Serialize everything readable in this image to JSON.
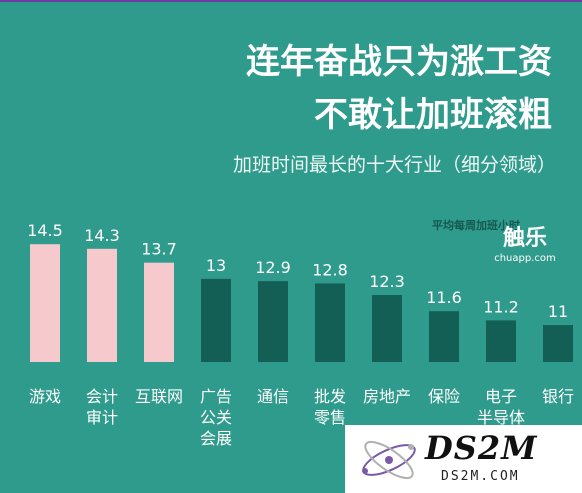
{
  "title_line1": "连年奋战只为涨工资",
  "title_line2": "不敢让加班滚粗",
  "subtitle": "加班时间最长的十大行业（细分领域）",
  "unit_note": "平均每周加班小时",
  "logo": {
    "name": "触乐",
    "url": "chuapp.com"
  },
  "watermark": {
    "name": "DS2M",
    "url": "DS2M.COM"
  },
  "colors": {
    "background": "#2f9b8c",
    "highlight": "#f6c9cc",
    "normal": "#135f55"
  },
  "chart_data": {
    "type": "bar",
    "title": "加班时间最长的十大行业（细分领域）",
    "ylabel": "平均每周加班小时",
    "categories": [
      "游戏",
      "会计\n审计",
      "互联网",
      "广告\n公关\n会展",
      "通信",
      "批发\n零售",
      "房地产",
      "保险",
      "电子\n半导体",
      "银行"
    ],
    "values": [
      14.5,
      14.3,
      13.7,
      13,
      12.9,
      12.8,
      12.3,
      11.6,
      11.2,
      11
    ],
    "value_labels": [
      "14.5",
      "14.3",
      "13.7",
      "13",
      "12.9",
      "12.8",
      "12.3",
      "11.6",
      "11.2",
      "11"
    ],
    "highlighted": [
      true,
      true,
      true,
      false,
      false,
      false,
      false,
      false,
      false,
      false
    ],
    "grid": false,
    "legend": "none"
  }
}
